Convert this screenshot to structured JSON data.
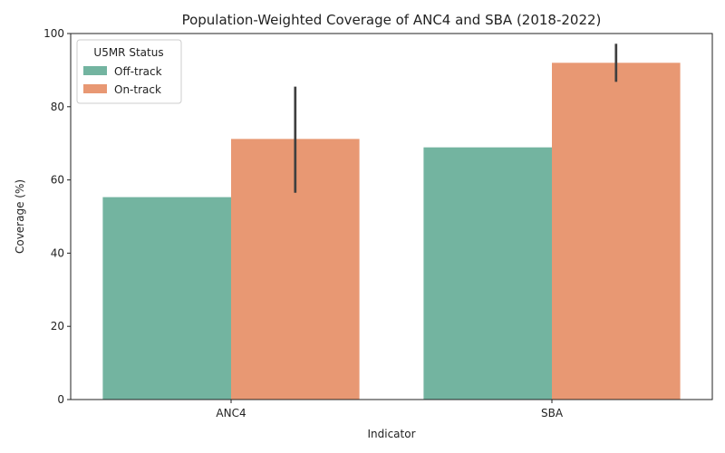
{
  "chart_data": {
    "type": "bar",
    "title": "Population-Weighted Coverage of ANC4 and SBA (2018-2022)",
    "xlabel": "Indicator",
    "ylabel": "Coverage (%)",
    "ylim": [
      0,
      100
    ],
    "yticks": [
      0,
      20,
      40,
      60,
      80,
      100
    ],
    "categories": [
      "ANC4",
      "SBA"
    ],
    "series": [
      {
        "name": "Off-track",
        "color": "#73b4a0",
        "values": [
          55.3,
          68.9
        ],
        "ci": [
          null,
          null
        ]
      },
      {
        "name": "On-track",
        "color": "#e89873",
        "values": [
          71.2,
          92.0
        ],
        "ci": [
          [
            56.5,
            85.5
          ],
          [
            86.8,
            97.2
          ]
        ]
      }
    ],
    "errorbar_color": "#3f3f3f",
    "legend": {
      "title": "U5MR Status",
      "placement": "top-left"
    },
    "grid": false
  }
}
